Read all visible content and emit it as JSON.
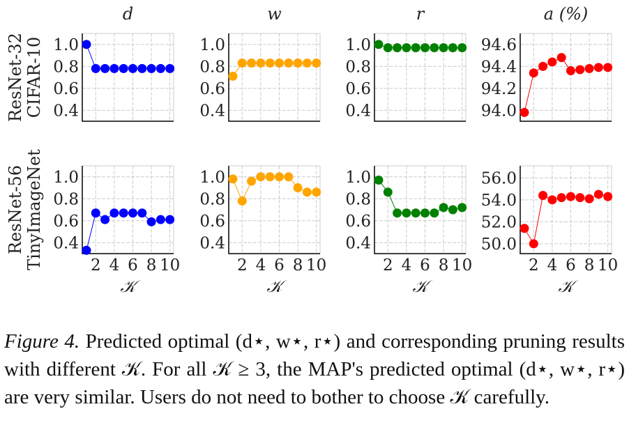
{
  "chart_data": [
    {
      "type": "line",
      "title": "d",
      "row_label": [
        "ResNet-32",
        "CIFAR-10"
      ],
      "x": [
        1,
        2,
        3,
        4,
        5,
        6,
        7,
        8,
        9,
        10
      ],
      "values": [
        1.0,
        0.78,
        0.78,
        0.78,
        0.78,
        0.78,
        0.78,
        0.78,
        0.78,
        0.78
      ],
      "ylim": [
        0.3,
        1.1
      ],
      "yticks": [
        "0.4",
        "0.6",
        "0.8",
        "1.0"
      ],
      "color": "#0000ff"
    },
    {
      "type": "line",
      "title": "w",
      "x": [
        1,
        2,
        3,
        4,
        5,
        6,
        7,
        8,
        9,
        10
      ],
      "values": [
        0.71,
        0.83,
        0.83,
        0.83,
        0.83,
        0.83,
        0.83,
        0.83,
        0.83,
        0.83
      ],
      "ylim": [
        0.3,
        1.1
      ],
      "yticks": [
        "0.4",
        "0.6",
        "0.8",
        "1.0"
      ],
      "color": "#ffa500"
    },
    {
      "type": "line",
      "title": "r",
      "x": [
        1,
        2,
        3,
        4,
        5,
        6,
        7,
        8,
        9,
        10
      ],
      "values": [
        1.0,
        0.97,
        0.97,
        0.97,
        0.97,
        0.97,
        0.97,
        0.97,
        0.97,
        0.97
      ],
      "ylim": [
        0.3,
        1.1
      ],
      "yticks": [
        "0.4",
        "0.6",
        "0.8",
        "1.0"
      ],
      "color": "#008000"
    },
    {
      "type": "line",
      "title": "a (%)",
      "x": [
        1,
        2,
        3,
        4,
        5,
        6,
        7,
        8,
        9,
        10
      ],
      "values": [
        93.98,
        94.34,
        94.4,
        94.44,
        94.48,
        94.36,
        94.37,
        94.38,
        94.39,
        94.39
      ],
      "ylim": [
        93.9,
        94.7
      ],
      "yticks": [
        "94.0",
        "94.2",
        "94.4",
        "94.6"
      ],
      "color": "#ff0000"
    },
    {
      "type": "line",
      "row_label": [
        "ResNet-56",
        "TinyImageNet"
      ],
      "x": [
        1,
        2,
        3,
        4,
        5,
        6,
        7,
        8,
        9,
        10
      ],
      "values": [
        0.33,
        0.67,
        0.61,
        0.67,
        0.67,
        0.67,
        0.67,
        0.59,
        0.61,
        0.61
      ],
      "ylim": [
        0.3,
        1.1
      ],
      "yticks": [
        "0.4",
        "0.6",
        "0.8",
        "1.0"
      ],
      "xticks": [
        "2",
        "4",
        "6",
        "8",
        "10"
      ],
      "xlabel": "𝒦",
      "color": "#0000ff"
    },
    {
      "type": "line",
      "x": [
        1,
        2,
        3,
        4,
        5,
        6,
        7,
        8,
        9,
        10
      ],
      "values": [
        0.98,
        0.78,
        0.96,
        1.0,
        1.0,
        1.0,
        1.0,
        0.9,
        0.86,
        0.86
      ],
      "ylim": [
        0.3,
        1.1
      ],
      "yticks": [
        "0.4",
        "0.6",
        "0.8",
        "1.0"
      ],
      "xticks": [
        "2",
        "4",
        "6",
        "8",
        "10"
      ],
      "xlabel": "𝒦",
      "color": "#ffa500"
    },
    {
      "type": "line",
      "x": [
        1,
        2,
        3,
        4,
        5,
        6,
        7,
        8,
        9,
        10
      ],
      "values": [
        0.97,
        0.86,
        0.67,
        0.67,
        0.67,
        0.67,
        0.67,
        0.72,
        0.7,
        0.72
      ],
      "ylim": [
        0.3,
        1.1
      ],
      "yticks": [
        "0.4",
        "0.6",
        "0.8",
        "1.0"
      ],
      "xticks": [
        "2",
        "4",
        "6",
        "8",
        "10"
      ],
      "xlabel": "𝒦",
      "color": "#008000"
    },
    {
      "type": "line",
      "x": [
        1,
        2,
        3,
        4,
        5,
        6,
        7,
        8,
        9,
        10
      ],
      "values": [
        51.4,
        50.0,
        54.4,
        54.0,
        54.2,
        54.3,
        54.2,
        54.1,
        54.5,
        54.3
      ],
      "ylim": [
        49.1,
        57.1
      ],
      "yticks": [
        "50.0",
        "52.0",
        "54.0",
        "56.0"
      ],
      "xticks": [
        "2",
        "4",
        "6",
        "8",
        "10"
      ],
      "xlabel": "𝒦",
      "color": "#ff0000"
    }
  ],
  "caption": {
    "label": "Figure 4.",
    "text": " Predicted optimal (d⋆, w⋆, r⋆) and corresponding pruning results with different 𝒦. For all 𝒦 ≥ 3, the MAP's predicted optimal (d⋆, w⋆, r⋆) are very similar. Users do not need to bother to choose 𝒦 carefully."
  }
}
